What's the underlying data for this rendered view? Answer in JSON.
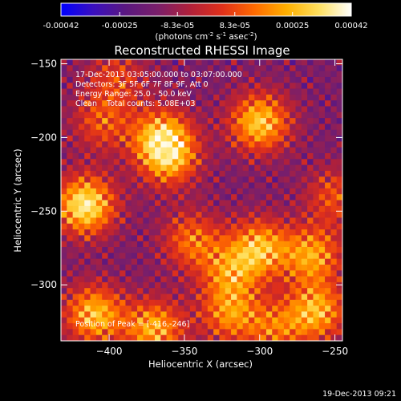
{
  "colorbar": {
    "ticks": [
      "-0.00042",
      "-0.00025",
      "-8.3e-05",
      "8.3e-05",
      "0.00025",
      "0.00042"
    ],
    "tick_values": [
      -0.00042,
      -0.00025,
      -8.3e-05,
      8.3e-05,
      0.00025,
      0.00042
    ],
    "range": [
      -0.00042,
      0.00042
    ],
    "unit_label": "(photons cm",
    "unit_sup1": "-2",
    "unit_mid": " s",
    "unit_sup2": "-1",
    "unit_end": " asec",
    "unit_sup3": "-2",
    "unit_close": ")",
    "colors": [
      "#0000ff",
      "#3a0fbf",
      "#5a1880",
      "#7a1f6a",
      "#b0203a",
      "#e0301a",
      "#ff6a00",
      "#ffb000",
      "#ffe060",
      "#ffffff"
    ]
  },
  "chart_data": {
    "type": "heatmap",
    "title": "Reconstructed RHESSI Image",
    "xlabel": "Heliocentric X (arcsec)",
    "ylabel": "Heliocentric Y (arcsec)",
    "xlim": [
      -432,
      -245
    ],
    "ylim": [
      -338,
      -147
    ],
    "xticks": [
      -400,
      -350,
      -300,
      -250
    ],
    "yticks": [
      -150,
      -200,
      -250,
      -300
    ],
    "xtick_labels": [
      "−400",
      "−350",
      "−300",
      "−250"
    ],
    "ytick_labels": [
      "−150",
      "−200",
      "−250",
      "−300"
    ],
    "annotations": [
      "17-Dec-2013 03:05:00.000 to 03:07:00.000",
      "Detectors: 3F 5F 6F 7F 8F 9F, Att 0",
      "Energy Range: 25.0 - 50.0 keV",
      "Clean    Total counts: 5.08E+03"
    ],
    "peak_label": "Position of Peak = [-416,-246]",
    "peak": [
      -416,
      -246
    ],
    "sources": [
      {
        "x": -416,
        "y": -246,
        "amp": 1.0
      },
      {
        "x": -365,
        "y": -200,
        "amp": 0.78
      },
      {
        "x": -360,
        "y": -215,
        "amp": 0.6
      },
      {
        "x": -300,
        "y": -190,
        "amp": 0.85
      },
      {
        "x": -405,
        "y": -190,
        "amp": 0.45
      },
      {
        "x": -395,
        "y": -160,
        "amp": 0.4
      },
      {
        "x": -345,
        "y": -270,
        "amp": 0.55
      },
      {
        "x": -300,
        "y": -275,
        "amp": 0.75
      },
      {
        "x": -265,
        "y": -280,
        "amp": 0.7
      },
      {
        "x": -320,
        "y": -292,
        "amp": 0.55
      },
      {
        "x": -250,
        "y": -240,
        "amp": 0.45
      },
      {
        "x": -410,
        "y": -320,
        "amp": 0.8
      },
      {
        "x": -370,
        "y": -330,
        "amp": 0.75
      },
      {
        "x": -320,
        "y": -320,
        "amp": 0.6
      },
      {
        "x": -262,
        "y": -318,
        "amp": 0.75
      },
      {
        "x": -290,
        "y": -330,
        "amp": 0.5
      }
    ]
  },
  "footer": {
    "timestamp": "19-Dec-2013 09:21"
  }
}
